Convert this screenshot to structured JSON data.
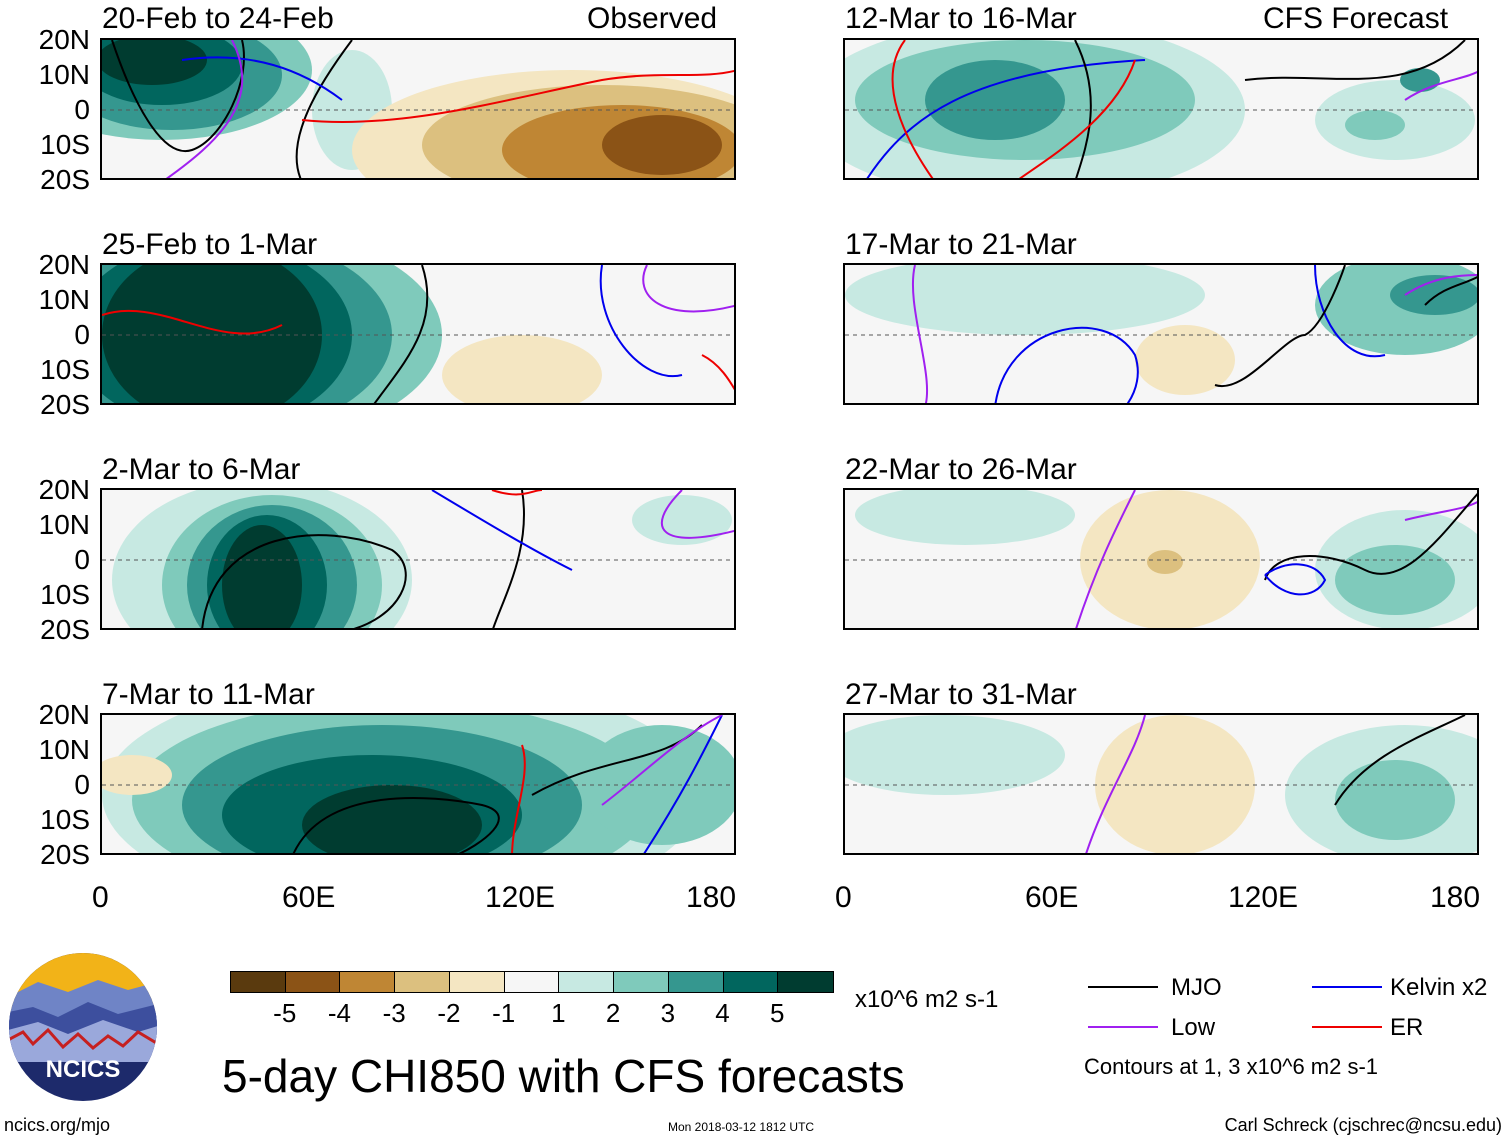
{
  "chart_data": {
    "type": "heatmap",
    "title": "5-day CHI850 with CFS forecasts",
    "units": "x10^6 m2 s-1",
    "y_ticks": [
      "20N",
      "10N",
      "0",
      "10S",
      "20S"
    ],
    "x_ticks": [
      "0",
      "60E",
      "120E",
      "180"
    ],
    "x_range": [
      0,
      180
    ],
    "y_range": [
      -20,
      20
    ],
    "left_column_label": "Observed",
    "right_column_label": "CFS Forecast",
    "panels": [
      {
        "period": "20-Feb to 24-Feb",
        "column": "Observed"
      },
      {
        "period": "25-Feb to 1-Mar",
        "column": "Observed"
      },
      {
        "period": "2-Mar to 6-Mar",
        "column": "Observed"
      },
      {
        "period": "7-Mar to 11-Mar",
        "column": "Observed"
      },
      {
        "period": "12-Mar to 16-Mar",
        "column": "CFS Forecast"
      },
      {
        "period": "17-Mar to 21-Mar",
        "column": "CFS Forecast"
      },
      {
        "period": "22-Mar to 26-Mar",
        "column": "CFS Forecast"
      },
      {
        "period": "27-Mar to 31-Mar",
        "column": "CFS Forecast"
      }
    ],
    "colorbar": {
      "labels": [
        "-5",
        "-4",
        "-3",
        "-2",
        "-1",
        "1",
        "2",
        "3",
        "4",
        "5"
      ],
      "colors": [
        "#5a3a0e",
        "#8b5316",
        "#bf8634",
        "#dcc07f",
        "#f4e6c2",
        "#f6f6f6",
        "#c7e9e2",
        "#7fcabb",
        "#35978f",
        "#01665e",
        "#003c30"
      ]
    },
    "legend": [
      {
        "name": "MJO",
        "color": "#000000"
      },
      {
        "name": "Kelvin x2",
        "color": "#0000ee"
      },
      {
        "name": "Low",
        "color": "#a020f0"
      },
      {
        "name": "ER",
        "color": "#ee0000"
      }
    ],
    "contour_note": "Contours at 1, 3 x10^6 m2 s-1"
  },
  "footer": {
    "logo_text": "NCICS",
    "url": "ncics.org/mjo",
    "timestamp": "Mon 2018-03-12 1812 UTC",
    "author": "Carl Schreck (cjschrec@ncsu.edu)"
  }
}
